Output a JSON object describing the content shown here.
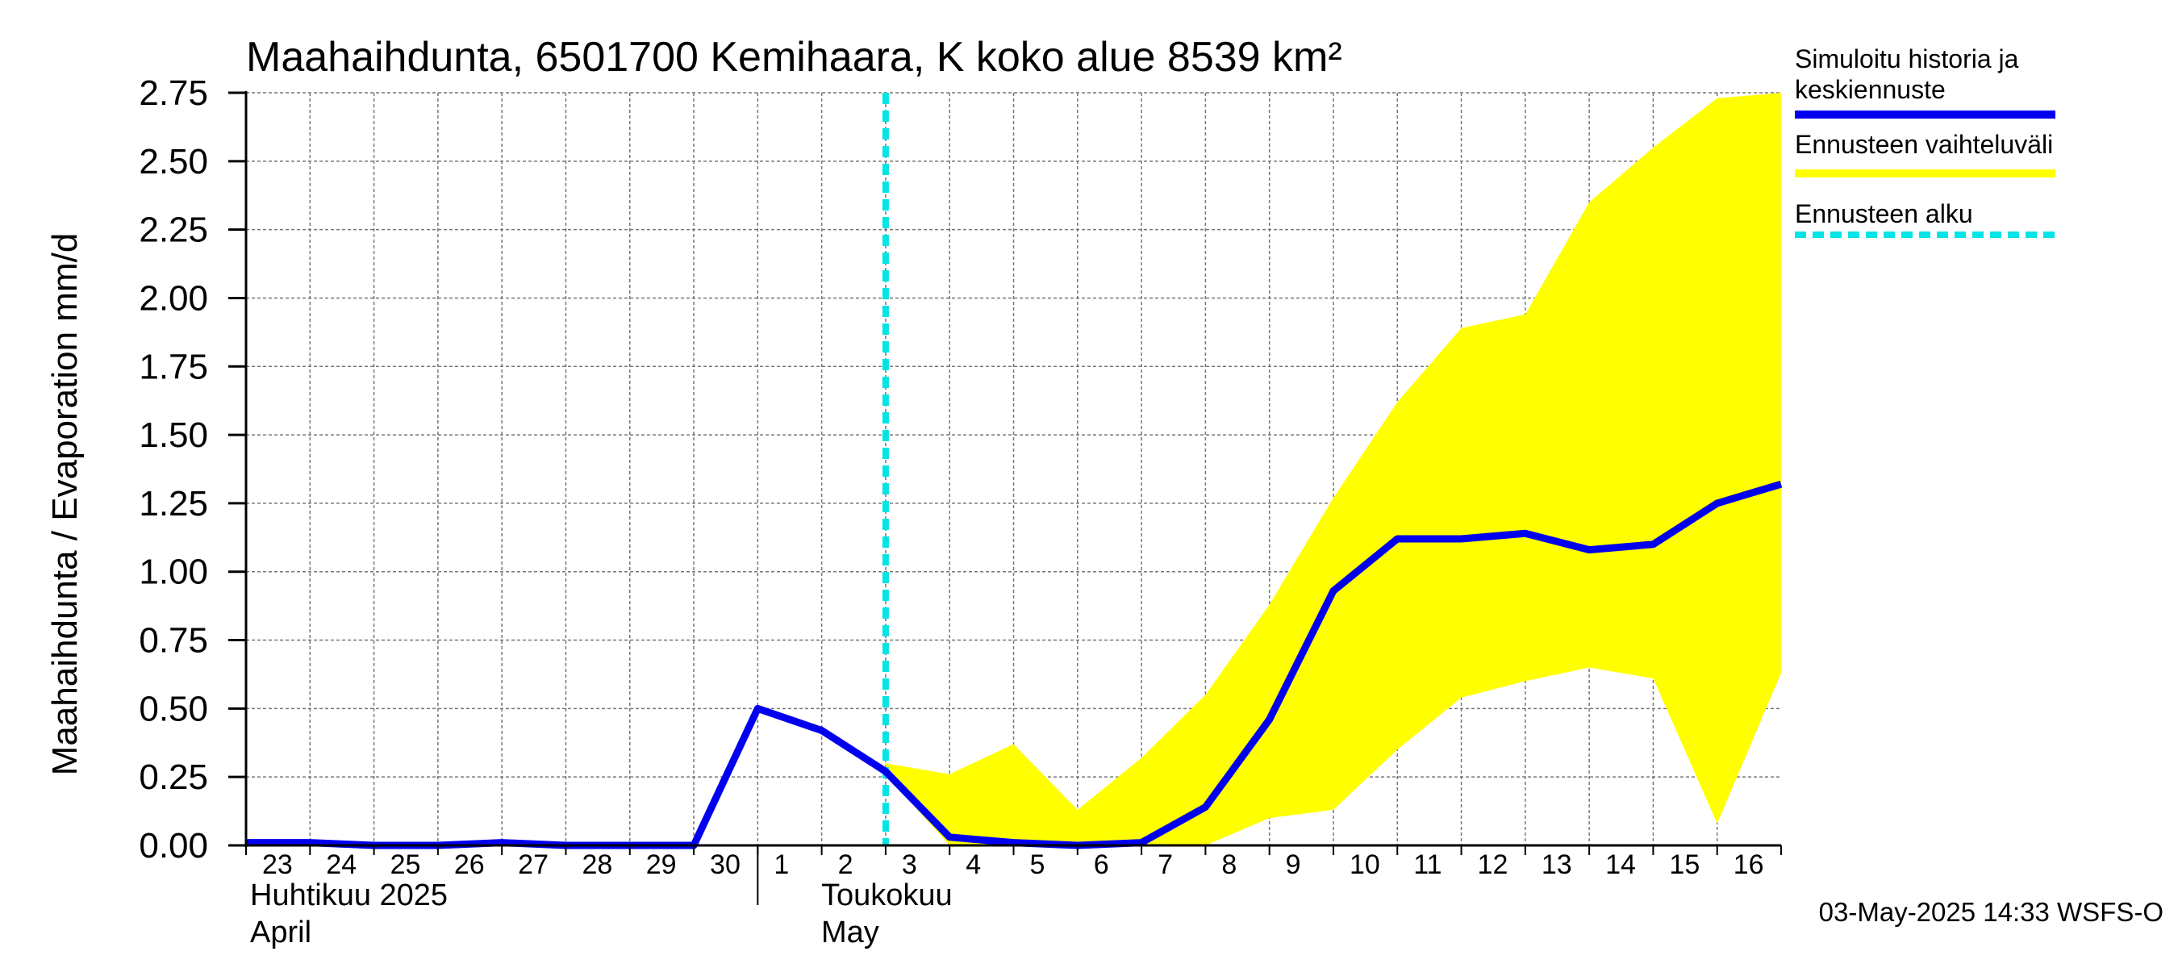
{
  "chart_data": {
    "type": "line",
    "title": "Maahaihdunta, 6501700 Kemihaara, K koko alue 8539 km²",
    "ylabel": "Maahaihdunta / Evaporation   mm/d",
    "ylim": [
      0,
      2.75
    ],
    "yticks": [
      "0.00",
      "0.25",
      "0.50",
      "0.75",
      "1.00",
      "1.25",
      "1.50",
      "1.75",
      "2.00",
      "2.25",
      "2.50",
      "2.75"
    ],
    "x_labels": [
      "23",
      "24",
      "25",
      "26",
      "27",
      "28",
      "29",
      "30",
      "1",
      "2",
      "3",
      "4",
      "5",
      "6",
      "7",
      "8",
      "9",
      "10",
      "11",
      "12",
      "13",
      "14",
      "15",
      "16"
    ],
    "month_labels": [
      {
        "line1": "Huhtikuu  2025",
        "line2": "April"
      },
      {
        "line1": "Toukokuu",
        "line2": "May"
      }
    ],
    "grid": true,
    "forecast_start": "2025-05-03",
    "series": [
      {
        "name": "Simuloitu historia ja keskiennuste",
        "color": "#0000ee",
        "x": [
          "2025-04-23",
          "2025-04-24",
          "2025-04-25",
          "2025-04-26",
          "2025-04-27",
          "2025-04-28",
          "2025-04-29",
          "2025-04-30",
          "2025-05-01",
          "2025-05-02",
          "2025-05-03",
          "2025-05-04",
          "2025-05-05",
          "2025-05-06",
          "2025-05-07",
          "2025-05-08",
          "2025-05-09",
          "2025-05-10",
          "2025-05-11",
          "2025-05-12",
          "2025-05-13",
          "2025-05-14",
          "2025-05-15",
          "2025-05-16",
          "2025-05-17"
        ],
        "values": [
          0.01,
          0.01,
          0.0,
          0.0,
          0.01,
          0.0,
          0.0,
          0.0,
          0.5,
          0.42,
          0.27,
          0.03,
          0.01,
          0.0,
          0.01,
          0.14,
          0.46,
          0.93,
          1.12,
          1.12,
          1.14,
          1.08,
          1.1,
          1.25,
          1.32
        ]
      },
      {
        "name": "Ennusteen vaihteluväli",
        "color": "#ffff00",
        "x": [
          "2025-05-03",
          "2025-05-04",
          "2025-05-05",
          "2025-05-06",
          "2025-05-07",
          "2025-05-08",
          "2025-05-09",
          "2025-05-10",
          "2025-05-11",
          "2025-05-12",
          "2025-05-13",
          "2025-05-14",
          "2025-05-15",
          "2025-05-16",
          "2025-05-17"
        ],
        "lower": [
          0.26,
          0.0,
          0.0,
          0.0,
          0.0,
          0.0,
          0.1,
          0.13,
          0.35,
          0.54,
          0.6,
          0.65,
          0.61,
          0.08,
          0.63
        ],
        "upper": [
          0.3,
          0.26,
          0.37,
          0.13,
          0.32,
          0.55,
          0.88,
          1.27,
          1.62,
          1.89,
          1.94,
          2.35,
          2.55,
          2.73,
          2.75
        ]
      },
      {
        "name": "Ennusteen alku",
        "color": "#00e5e5"
      }
    ]
  },
  "legend": {
    "items": [
      {
        "line1": "Simuloitu historia ja",
        "line2": "keskiennuste",
        "color": "#0000ee",
        "style": "solid"
      },
      {
        "line1": "Ennusteen vaihteluväli",
        "line2": "",
        "color": "#ffff00",
        "style": "solid"
      },
      {
        "line1": "Ennusteen alku",
        "line2": "",
        "color": "#00e5e5",
        "style": "dashed"
      }
    ]
  },
  "timestamp": "03-May-2025 14:33 WSFS-O"
}
